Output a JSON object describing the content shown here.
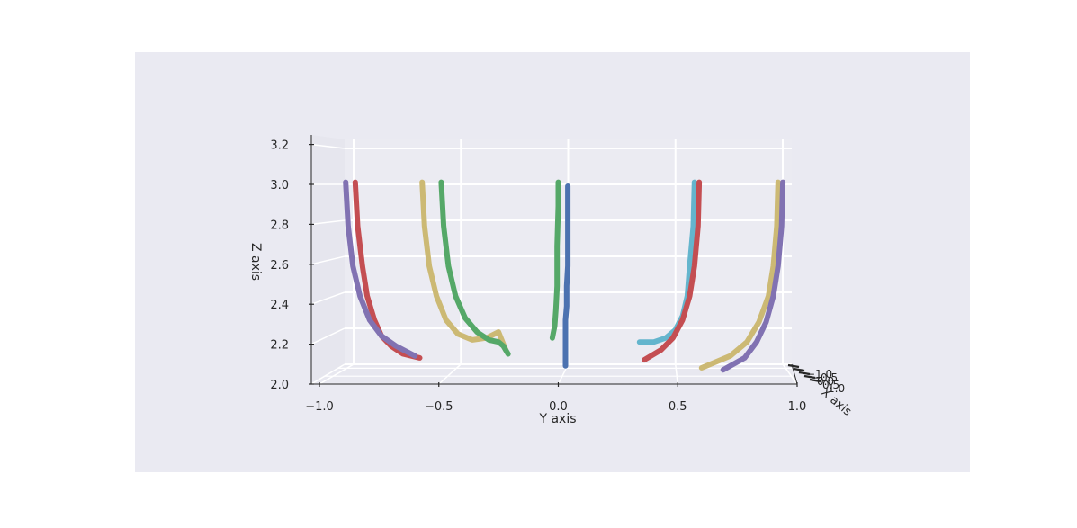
{
  "chart_data": {
    "type": "line",
    "projection": "3d",
    "xlabel": "Y axis",
    "ylabel": "Z axis",
    "depth_label": "X axis",
    "xlim": [
      -1.05,
      1.05
    ],
    "ylim": [
      2.0,
      3.25
    ],
    "x_ticks": [
      "−1.0",
      "−0.5",
      "0.0",
      "0.5",
      "1.0"
    ],
    "x_tick_values": [
      -1.0,
      -0.5,
      0.0,
      0.5,
      1.0
    ],
    "y_ticks": [
      "2.0",
      "2.2",
      "2.4",
      "2.6",
      "2.8",
      "3.0",
      "3.2"
    ],
    "y_tick_values": [
      2.0,
      2.2,
      2.4,
      2.6,
      2.8,
      3.0,
      3.2
    ],
    "depth_ticks": [
      "−1.0",
      "−0.5",
      "0.0",
      "0.5",
      "1.0"
    ],
    "grid": true,
    "legend": "none",
    "colors": {
      "figure_background": "#EAEAF2",
      "pane": "#EAEAF2",
      "grid": "#FFFFFF",
      "axis_line": "#262626"
    },
    "series": [
      {
        "color": "#4C72B0",
        "y": [
          0.04,
          0.04,
          0.04,
          0.04,
          0.04,
          0.035,
          0.035,
          0.03,
          0.03,
          0.03
        ],
        "z": [
          3.0,
          2.9,
          2.8,
          2.7,
          2.6,
          2.5,
          2.4,
          2.33,
          2.3,
          2.1
        ]
      },
      {
        "color": "#55A868",
        "y": [
          0.0,
          0.0,
          -0.005,
          -0.005,
          -0.01,
          -0.015,
          -0.025
        ],
        "z": [
          3.02,
          2.9,
          2.7,
          2.5,
          2.38,
          2.3,
          2.24
        ]
      },
      {
        "color": "#C44E52",
        "y": [
          -0.85,
          -0.84,
          -0.82,
          -0.8,
          -0.77,
          -0.74,
          -0.7,
          -0.65,
          -0.58
        ],
        "z": [
          3.02,
          2.8,
          2.6,
          2.45,
          2.33,
          2.25,
          2.2,
          2.16,
          2.14
        ]
      },
      {
        "color": "#8172B2",
        "y": [
          -0.89,
          -0.88,
          -0.86,
          -0.83,
          -0.79,
          -0.74,
          -0.68,
          -0.6
        ],
        "z": [
          3.02,
          2.8,
          2.6,
          2.45,
          2.33,
          2.25,
          2.2,
          2.15
        ]
      },
      {
        "color": "#CCB974",
        "y": [
          -0.57,
          -0.56,
          -0.54,
          -0.51,
          -0.47,
          -0.42,
          -0.36,
          -0.3,
          -0.25,
          -0.22
        ],
        "z": [
          3.02,
          2.8,
          2.6,
          2.45,
          2.33,
          2.26,
          2.23,
          2.24,
          2.27,
          2.18
        ]
      },
      {
        "color": "#55A868",
        "y": [
          -0.49,
          -0.48,
          -0.46,
          -0.43,
          -0.39,
          -0.34,
          -0.29,
          -0.25,
          -0.23,
          -0.21
        ],
        "z": [
          3.02,
          2.8,
          2.6,
          2.45,
          2.34,
          2.27,
          2.23,
          2.22,
          2.2,
          2.16
        ]
      },
      {
        "color": "#64B5CD",
        "y": [
          0.57,
          0.565,
          0.55,
          0.54,
          0.52,
          0.49,
          0.45,
          0.4,
          0.34
        ],
        "z": [
          3.02,
          2.8,
          2.6,
          2.45,
          2.35,
          2.28,
          2.24,
          2.22,
          2.22
        ]
      },
      {
        "color": "#C44E52",
        "y": [
          0.59,
          0.585,
          0.57,
          0.55,
          0.52,
          0.48,
          0.43,
          0.36
        ],
        "z": [
          3.02,
          2.8,
          2.6,
          2.45,
          2.33,
          2.24,
          2.18,
          2.13
        ]
      },
      {
        "color": "#CCB974",
        "y": [
          0.92,
          0.915,
          0.9,
          0.88,
          0.84,
          0.79,
          0.72,
          0.6
        ],
        "z": [
          3.02,
          2.8,
          2.6,
          2.45,
          2.32,
          2.22,
          2.15,
          2.09
        ]
      },
      {
        "color": "#8172B2",
        "y": [
          0.94,
          0.935,
          0.92,
          0.9,
          0.87,
          0.83,
          0.78,
          0.69
        ],
        "z": [
          3.02,
          2.8,
          2.6,
          2.45,
          2.32,
          2.22,
          2.14,
          2.08
        ]
      }
    ]
  }
}
